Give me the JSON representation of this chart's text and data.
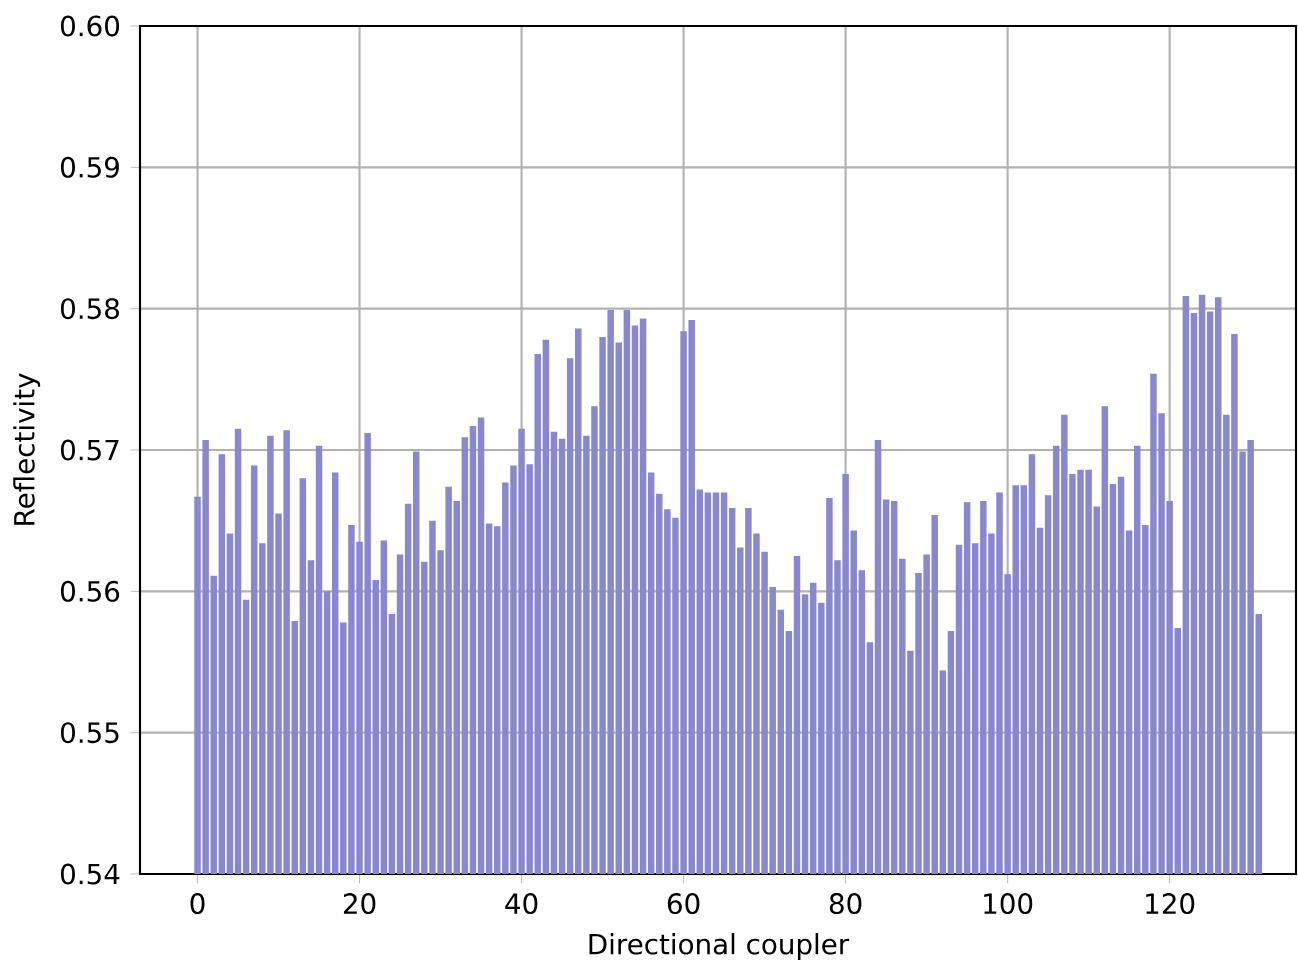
{
  "chart_data": {
    "type": "bar",
    "xlabel": "Directional coupler",
    "ylabel": "Reflectivity",
    "color": "#8888cc",
    "x": [
      0,
      1,
      2,
      3,
      4,
      5,
      6,
      7,
      8,
      9,
      10,
      11,
      12,
      13,
      14,
      15,
      16,
      17,
      18,
      19,
      20,
      21,
      22,
      23,
      24,
      25,
      26,
      27,
      28,
      29,
      30,
      31,
      32,
      33,
      34,
      35,
      36,
      37,
      38,
      39,
      40,
      41,
      42,
      43,
      44,
      45,
      46,
      47,
      48,
      49,
      50,
      51,
      52,
      53,
      54,
      55,
      56,
      57,
      58,
      59,
      60,
      61,
      62,
      63,
      64,
      65,
      66,
      67,
      68,
      69,
      70,
      71,
      72,
      73,
      74,
      75,
      76,
      77,
      78,
      79,
      80,
      81,
      82,
      83,
      84,
      85,
      86,
      87,
      88,
      89,
      90,
      91,
      92,
      93,
      94,
      95,
      96,
      97,
      98,
      99,
      100,
      101,
      102,
      103,
      104,
      105,
      106,
      107,
      108,
      109,
      110,
      111,
      112,
      113,
      114,
      115,
      116,
      117,
      118,
      119,
      120,
      121,
      122,
      123,
      124,
      125,
      126,
      127,
      128,
      129,
      130,
      131
    ],
    "values": [
      0.5667,
      0.5707,
      0.5611,
      0.5697,
      0.5641,
      0.5715,
      0.5594,
      0.5689,
      0.5634,
      0.571,
      0.5655,
      0.5714,
      0.5579,
      0.568,
      0.5622,
      0.5703,
      0.56,
      0.5684,
      0.5578,
      0.5647,
      0.5635,
      0.5712,
      0.5608,
      0.5636,
      0.5584,
      0.5626,
      0.5662,
      0.5699,
      0.5621,
      0.565,
      0.5629,
      0.5674,
      0.5664,
      0.5709,
      0.5717,
      0.5723,
      0.5648,
      0.5646,
      0.5677,
      0.5689,
      0.5715,
      0.569,
      0.5768,
      0.5778,
      0.5713,
      0.5708,
      0.5765,
      0.5786,
      0.571,
      0.5731,
      0.578,
      0.5799,
      0.5776,
      0.5799,
      0.5788,
      0.5793,
      0.5684,
      0.5669,
      0.5658,
      0.5652,
      0.5784,
      0.5792,
      0.5672,
      0.567,
      0.567,
      0.567,
      0.5659,
      0.5631,
      0.5659,
      0.5641,
      0.5628,
      0.5603,
      0.5587,
      0.5572,
      0.5625,
      0.5598,
      0.5606,
      0.5592,
      0.5666,
      0.5622,
      0.5683,
      0.5643,
      0.5615,
      0.5564,
      0.5707,
      0.5665,
      0.5664,
      0.5623,
      0.5558,
      0.5613,
      0.5626,
      0.5654,
      0.5544,
      0.5572,
      0.5633,
      0.5663,
      0.5634,
      0.5664,
      0.5641,
      0.567,
      0.5612,
      0.5675,
      0.5675,
      0.5697,
      0.5645,
      0.5668,
      0.5703,
      0.5725,
      0.5683,
      0.5686,
      0.5686,
      0.566,
      0.5731,
      0.5676,
      0.5681,
      0.5643,
      0.5703,
      0.5647,
      0.5754,
      0.5726,
      0.5664,
      0.5574,
      0.5809,
      0.5797,
      0.581,
      0.5798,
      0.5808,
      0.5725,
      0.5782,
      0.5699,
      0.5707,
      0.5584
    ],
    "xlim": [
      -7.1,
      135.6
    ],
    "ylim": [
      0.54,
      0.6
    ],
    "xticks": [
      0,
      20,
      40,
      60,
      80,
      100,
      120
    ],
    "yticks": [
      0.54,
      0.55,
      0.56,
      0.57,
      0.58,
      0.59,
      {
        "value": 0.6,
        "label": "0.60"
      }
    ],
    "grid": true
  }
}
